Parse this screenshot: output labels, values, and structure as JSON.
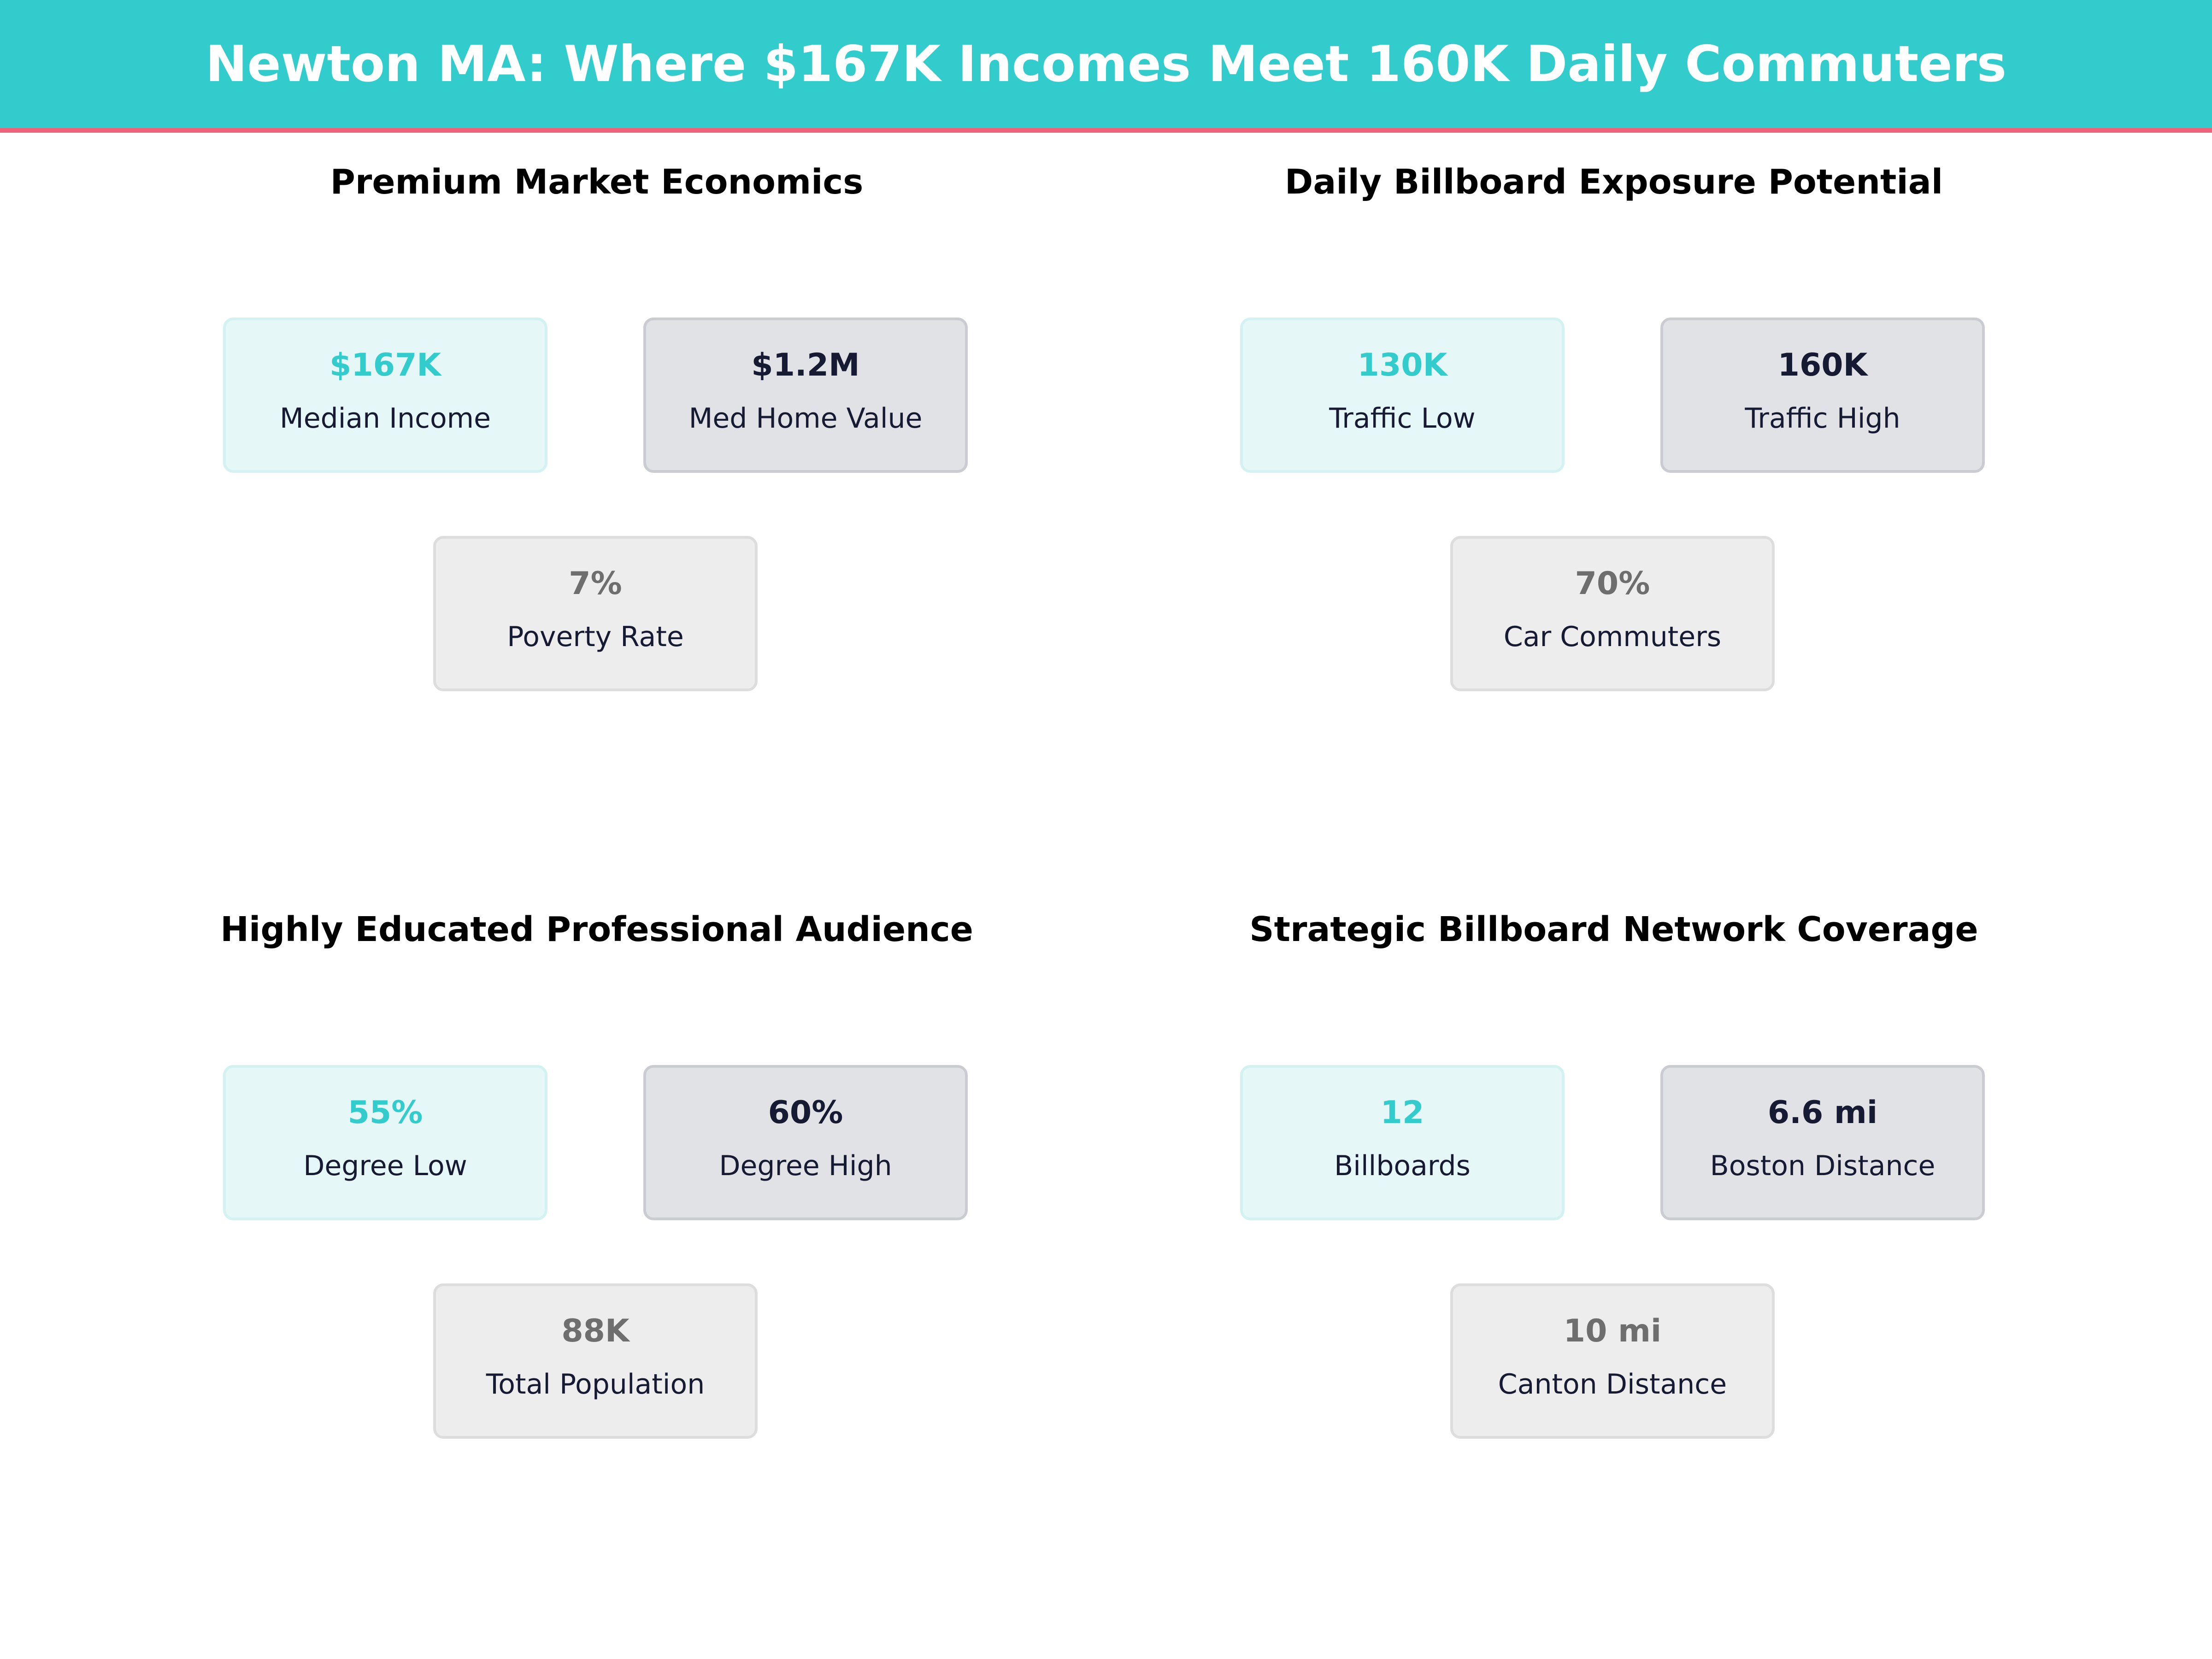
{
  "header": {
    "title": "Newton MA: Where $167K Incomes Meet 160K Daily Commuters"
  },
  "colors": {
    "accent": "#33CCCC",
    "stripe": "#F0627A",
    "dark": "#161B33",
    "muted": "#6E6E6E"
  },
  "panels": [
    {
      "title": "Premium Market Economics",
      "cards": [
        {
          "value": "$167K",
          "label": "Median Income",
          "style": "teal"
        },
        {
          "value": "$1.2M",
          "label": "Med Home Value",
          "style": "dark"
        },
        {
          "value": "7%",
          "label": "Poverty Rate",
          "style": "gray"
        }
      ]
    },
    {
      "title": "Daily Billboard Exposure Potential",
      "cards": [
        {
          "value": "130K",
          "label": "Traffic Low",
          "style": "teal"
        },
        {
          "value": "160K",
          "label": "Traffic High",
          "style": "dark"
        },
        {
          "value": "70%",
          "label": "Car Commuters",
          "style": "gray"
        }
      ]
    },
    {
      "title": "Highly Educated Professional Audience",
      "cards": [
        {
          "value": "55%",
          "label": "Degree Low",
          "style": "teal"
        },
        {
          "value": "60%",
          "label": "Degree High",
          "style": "dark"
        },
        {
          "value": "88K",
          "label": "Total Population",
          "style": "gray"
        }
      ]
    },
    {
      "title": "Strategic Billboard Network Coverage",
      "cards": [
        {
          "value": "12",
          "label": "Billboards",
          "style": "teal"
        },
        {
          "value": "6.6 mi",
          "label": "Boston Distance",
          "style": "dark"
        },
        {
          "value": "10 mi",
          "label": "Canton Distance",
          "style": "gray"
        }
      ]
    }
  ]
}
